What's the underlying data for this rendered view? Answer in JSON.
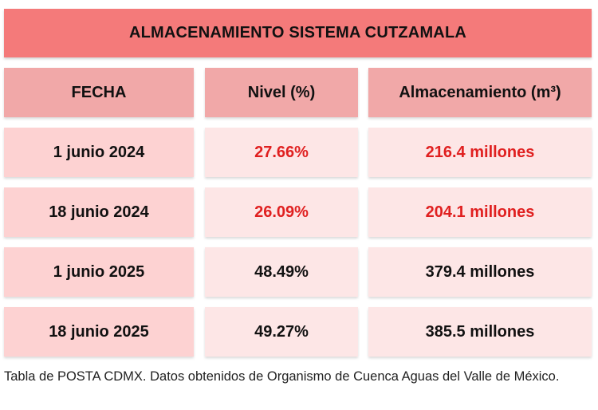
{
  "title": "ALMACENAMIENTO SISTEMA CUTZAMALA",
  "chart_data": {
    "type": "table",
    "title": "ALMACENAMIENTO SISTEMA CUTZAMALA",
    "columns": [
      "FECHA",
      "Nivel (%)",
      "Almacenamiento (m³)"
    ],
    "rows": [
      {
        "fecha": "1 junio 2024",
        "nivel": "27.66%",
        "almacenamiento": "216.4 millones",
        "highlight": true
      },
      {
        "fecha": "18 junio 2024",
        "nivel": "26.09%",
        "almacenamiento": "204.1 millones",
        "highlight": true
      },
      {
        "fecha": "1 junio 2025",
        "nivel": "48.49%",
        "almacenamiento": "379.4 millones",
        "highlight": false
      },
      {
        "fecha": "18 junio 2025",
        "nivel": "49.27%",
        "almacenamiento": "385.5 millones",
        "highlight": false
      }
    ]
  },
  "colors": {
    "title_bg": "#f47a7a",
    "header_bg": "#f1a8a8",
    "cell_bg_light": "#fde6e6",
    "cell_bg_dark": "#fdd2d2",
    "highlight_text": "#e02020"
  },
  "footer": {
    "source": "Tabla de POSTA CDMX. Datos obtenidos de Organismo de Cuenca Aguas del Valle de México."
  }
}
